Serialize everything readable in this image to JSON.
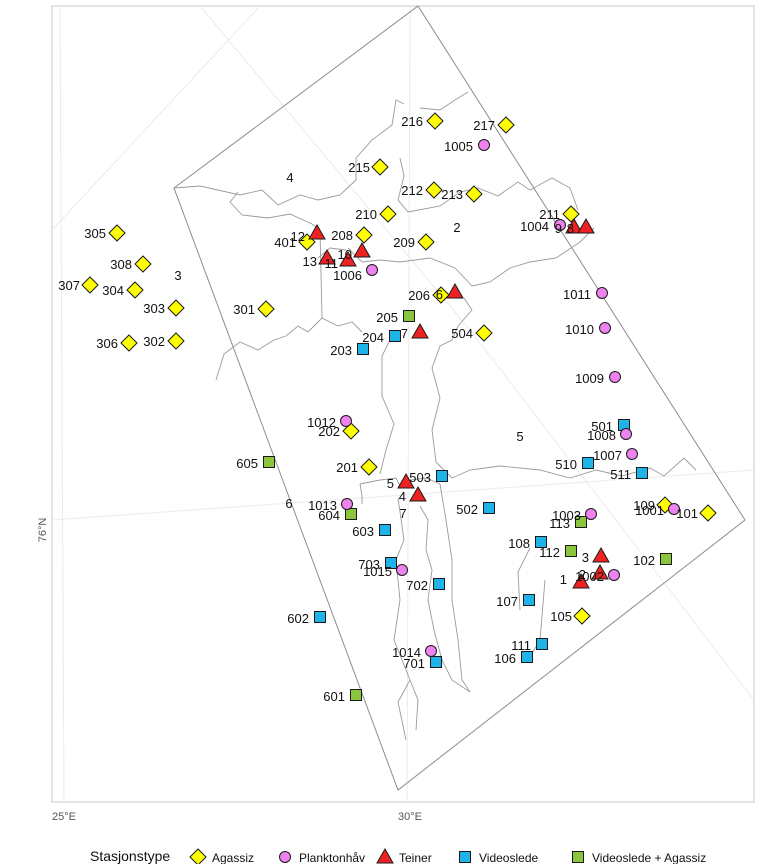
{
  "map": {
    "axis_labels": {
      "x_left": "25°E",
      "x_right": "30°E",
      "y": "76°N"
    },
    "region_labels": [
      "2",
      "3",
      "4",
      "5",
      "6",
      "7"
    ],
    "legend": {
      "title": "Stasjonstype",
      "items": [
        {
          "label": "Agassiz",
          "shape": "diamond",
          "color": "#ffff00"
        },
        {
          "label": "Planktonhåv",
          "shape": "circle",
          "color": "#ee82ee"
        },
        {
          "label": "Teiner",
          "shape": "triangle",
          "color": "#ee2222"
        },
        {
          "label": "Videoslede",
          "shape": "square",
          "color": "#1eb4e8"
        },
        {
          "label": "Videoslede + Agassiz",
          "shape": "square",
          "color": "#8cc63f"
        }
      ]
    },
    "stations": [
      {
        "id": "216",
        "type": "Agassiz"
      },
      {
        "id": "217",
        "type": "Agassiz"
      },
      {
        "id": "215",
        "type": "Agassiz"
      },
      {
        "id": "212",
        "type": "Agassiz"
      },
      {
        "id": "213",
        "type": "Agassiz"
      },
      {
        "id": "210",
        "type": "Agassiz"
      },
      {
        "id": "211",
        "type": "Agassiz"
      },
      {
        "id": "208",
        "type": "Agassiz"
      },
      {
        "id": "209",
        "type": "Agassiz"
      },
      {
        "id": "401",
        "type": "Agassiz"
      },
      {
        "id": "305",
        "type": "Agassiz"
      },
      {
        "id": "308",
        "type": "Agassiz"
      },
      {
        "id": "307",
        "type": "Agassiz"
      },
      {
        "id": "304",
        "type": "Agassiz"
      },
      {
        "id": "303",
        "type": "Agassiz"
      },
      {
        "id": "301",
        "type": "Agassiz"
      },
      {
        "id": "306",
        "type": "Agassiz"
      },
      {
        "id": "302",
        "type": "Agassiz"
      },
      {
        "id": "206",
        "type": "Agassiz"
      },
      {
        "id": "504",
        "type": "Agassiz"
      },
      {
        "id": "202",
        "type": "Agassiz"
      },
      {
        "id": "201",
        "type": "Agassiz"
      },
      {
        "id": "109",
        "type": "Agassiz"
      },
      {
        "id": "101",
        "type": "Agassiz"
      },
      {
        "id": "105",
        "type": "Agassiz"
      },
      {
        "id": "1005",
        "type": "Planktonhåv"
      },
      {
        "id": "1004",
        "type": "Planktonhåv"
      },
      {
        "id": "1006",
        "type": "Planktonhåv"
      },
      {
        "id": "1011",
        "type": "Planktonhåv"
      },
      {
        "id": "1010",
        "type": "Planktonhåv"
      },
      {
        "id": "1009",
        "type": "Planktonhåv"
      },
      {
        "id": "1012",
        "type": "Planktonhåv"
      },
      {
        "id": "1008",
        "type": "Planktonhåv"
      },
      {
        "id": "1007",
        "type": "Planktonhåv"
      },
      {
        "id": "1013",
        "type": "Planktonhåv"
      },
      {
        "id": "1001",
        "type": "Planktonhåv"
      },
      {
        "id": "1003",
        "type": "Planktonhåv"
      },
      {
        "id": "1015",
        "type": "Planktonhåv"
      },
      {
        "id": "1002",
        "type": "Planktonhåv"
      },
      {
        "id": "1014",
        "type": "Planktonhåv"
      },
      {
        "id": "12",
        "type": "Teiner"
      },
      {
        "id": "13",
        "type": "Teiner"
      },
      {
        "id": "11",
        "type": "Teiner"
      },
      {
        "id": "10",
        "type": "Teiner"
      },
      {
        "id": "9",
        "type": "Teiner"
      },
      {
        "id": "8",
        "type": "Teiner"
      },
      {
        "id": "6",
        "type": "Teiner"
      },
      {
        "id": "7",
        "type": "Teiner"
      },
      {
        "id": "5",
        "type": "Teiner"
      },
      {
        "id": "4",
        "type": "Teiner"
      },
      {
        "id": "3",
        "type": "Teiner"
      },
      {
        "id": "2",
        "type": "Teiner"
      },
      {
        "id": "1",
        "type": "Teiner"
      },
      {
        "id": "204",
        "type": "Videoslede"
      },
      {
        "id": "203",
        "type": "Videoslede"
      },
      {
        "id": "501",
        "type": "Videoslede"
      },
      {
        "id": "510",
        "type": "Videoslede"
      },
      {
        "id": "511",
        "type": "Videoslede"
      },
      {
        "id": "503",
        "type": "Videoslede"
      },
      {
        "id": "502",
        "type": "Videoslede"
      },
      {
        "id": "603",
        "type": "Videoslede"
      },
      {
        "id": "108",
        "type": "Videoslede"
      },
      {
        "id": "703",
        "type": "Videoslede"
      },
      {
        "id": "702",
        "type": "Videoslede"
      },
      {
        "id": "107",
        "type": "Videoslede"
      },
      {
        "id": "602",
        "type": "Videoslede"
      },
      {
        "id": "111",
        "type": "Videoslede"
      },
      {
        "id": "106",
        "type": "Videoslede"
      },
      {
        "id": "701",
        "type": "Videoslede"
      },
      {
        "id": "205",
        "type": "Videoslede + Agassiz"
      },
      {
        "id": "605",
        "type": "Videoslede + Agassiz"
      },
      {
        "id": "604",
        "type": "Videoslede + Agassiz"
      },
      {
        "id": "113",
        "type": "Videoslede + Agassiz"
      },
      {
        "id": "112",
        "type": "Videoslede + Agassiz"
      },
      {
        "id": "102",
        "type": "Videoslede + Agassiz"
      },
      {
        "id": "601",
        "type": "Videoslede + Agassiz"
      }
    ]
  }
}
